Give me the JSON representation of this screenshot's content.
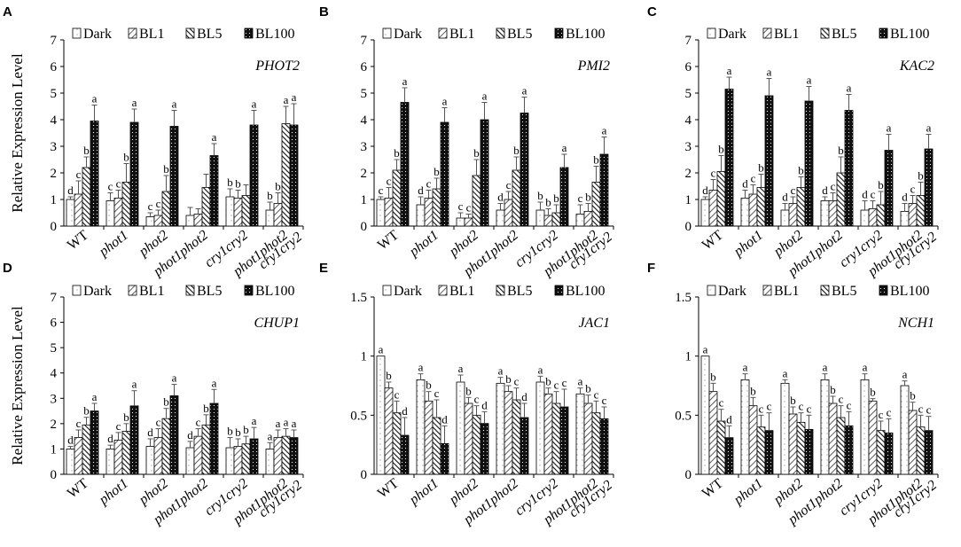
{
  "chart_data": [
    {
      "type": "bar",
      "panel": "A",
      "gene": "PHOT2",
      "ylabel": "Relative Expression Level",
      "ylim": [
        0,
        7
      ],
      "yticks": [
        "0",
        "1",
        "2",
        "3",
        "4",
        "5",
        "6",
        "7"
      ],
      "categories": [
        "WT",
        "phot1",
        "phot2",
        "phot1phot2",
        "cry1cry2",
        "phot1phot2 cry1cry2"
      ],
      "series": [
        {
          "name": "Dark",
          "values": [
            1.0,
            0.95,
            0.35,
            0.4,
            1.1,
            0.6
          ],
          "errors": [
            0.1,
            0.3,
            0.15,
            0.3,
            0.3,
            0.3
          ],
          "letters": [
            "d",
            "c",
            "c",
            "",
            "b",
            "b"
          ]
        },
        {
          "name": "BL1",
          "values": [
            1.2,
            1.05,
            0.4,
            0.45,
            1.05,
            0.85
          ],
          "errors": [
            0.5,
            0.3,
            0.2,
            0.2,
            0.3,
            0.4
          ],
          "letters": [
            "c",
            "c",
            "c",
            "",
            "b",
            "b"
          ]
        },
        {
          "name": "BL5",
          "values": [
            2.2,
            1.65,
            1.3,
            1.45,
            1.15,
            3.85
          ],
          "errors": [
            0.4,
            0.7,
            0.6,
            0.5,
            0.4,
            0.65
          ],
          "letters": [
            "b",
            "b",
            "b",
            "",
            "",
            "a"
          ]
        },
        {
          "name": "BL100",
          "values": [
            3.95,
            3.9,
            3.75,
            2.65,
            3.8,
            3.8
          ],
          "errors": [
            0.6,
            0.5,
            0.6,
            0.45,
            0.55,
            0.8
          ],
          "letters": [
            "a",
            "a",
            "a",
            "a",
            "a",
            "a"
          ]
        }
      ]
    },
    {
      "type": "bar",
      "panel": "B",
      "gene": "PMI2",
      "ylabel": "",
      "ylim": [
        0,
        7
      ],
      "yticks": [
        "0",
        "1",
        "2",
        "3",
        "4",
        "5",
        "6",
        "7"
      ],
      "categories": [
        "WT",
        "phot1",
        "phot2",
        "phot1phot2",
        "cry1cry2",
        "phot1phot2 cry1cry2"
      ],
      "series": [
        {
          "name": "Dark",
          "values": [
            1.0,
            0.8,
            0.3,
            0.6,
            0.6,
            0.45
          ],
          "errors": [
            0.1,
            0.3,
            0.2,
            0.25,
            0.3,
            0.35
          ],
          "letters": [
            "c",
            "d",
            "c",
            "d",
            "b",
            "c"
          ]
        },
        {
          "name": "BL1",
          "values": [
            1.05,
            1.05,
            0.3,
            1.0,
            0.4,
            0.55
          ],
          "errors": [
            0.4,
            0.3,
            0.15,
            0.3,
            0.25,
            0.3
          ],
          "letters": [
            "c",
            "c",
            "c",
            "c",
            "b",
            "b"
          ]
        },
        {
          "name": "BL5",
          "values": [
            2.1,
            1.4,
            1.9,
            2.1,
            0.5,
            1.65
          ],
          "errors": [
            0.4,
            0.4,
            0.6,
            0.5,
            0.3,
            0.6
          ],
          "letters": [
            "b",
            "b",
            "b",
            "b",
            "b",
            "b"
          ]
        },
        {
          "name": "BL100",
          "values": [
            4.65,
            3.9,
            4.0,
            4.25,
            2.2,
            2.7
          ],
          "errors": [
            0.55,
            0.55,
            0.65,
            0.6,
            0.5,
            0.65
          ],
          "letters": [
            "a",
            "a",
            "a",
            "a",
            "a",
            "a"
          ]
        }
      ]
    },
    {
      "type": "bar",
      "panel": "C",
      "gene": "KAC2",
      "ylabel": "",
      "ylim": [
        0,
        7
      ],
      "yticks": [
        "0",
        "1",
        "2",
        "3",
        "4",
        "5",
        "6",
        "7"
      ],
      "categories": [
        "WT",
        "phot1",
        "phot2",
        "phot1phot2",
        "cry1cry2",
        "phot1phot2 cry1cry2"
      ],
      "series": [
        {
          "name": "Dark",
          "values": [
            1.0,
            1.05,
            0.6,
            0.95,
            0.6,
            0.55
          ],
          "errors": [
            0.1,
            0.3,
            0.25,
            0.15,
            0.35,
            0.3
          ],
          "letters": [
            "d",
            "d",
            "d",
            "d",
            "d",
            "d"
          ]
        },
        {
          "name": "BL1",
          "values": [
            1.35,
            1.2,
            0.85,
            0.95,
            0.65,
            0.85
          ],
          "errors": [
            0.4,
            0.35,
            0.25,
            0.3,
            0.3,
            0.3
          ],
          "letters": [
            "c",
            "c",
            "c",
            "c",
            "c",
            "c"
          ]
        },
        {
          "name": "BL5",
          "values": [
            2.05,
            1.45,
            1.45,
            2.0,
            0.8,
            1.15
          ],
          "errors": [
            0.6,
            0.5,
            0.4,
            0.6,
            0.5,
            0.5
          ],
          "letters": [
            "b",
            "b",
            "b",
            "b",
            "b",
            "b"
          ]
        },
        {
          "name": "BL100",
          "values": [
            5.15,
            4.9,
            4.7,
            4.35,
            2.85,
            2.9
          ],
          "errors": [
            0.45,
            0.65,
            0.55,
            0.6,
            0.6,
            0.55
          ],
          "letters": [
            "a",
            "a",
            "a",
            "a",
            "a",
            "a"
          ]
        }
      ]
    },
    {
      "type": "bar",
      "panel": "D",
      "gene": "CHUP1",
      "ylabel": "Relative Expression Level",
      "ylim": [
        0,
        7
      ],
      "yticks": [
        "0",
        "1",
        "2",
        "3",
        "4",
        "5",
        "6",
        "7"
      ],
      "categories": [
        "WT",
        "phot1",
        "phot2",
        "phot1phot2",
        "cry1cry2",
        "phot1phot2 cry1cry2"
      ],
      "series": [
        {
          "name": "Dark",
          "values": [
            1.0,
            1.0,
            1.1,
            1.05,
            1.05,
            1.0
          ],
          "errors": [
            0.1,
            0.15,
            0.3,
            0.25,
            0.4,
            0.25
          ],
          "letters": [
            "d",
            "d",
            "d",
            "d",
            "b",
            "a"
          ]
        },
        {
          "name": "BL1",
          "values": [
            1.45,
            1.35,
            1.45,
            1.5,
            1.1,
            1.45
          ],
          "errors": [
            0.3,
            0.3,
            0.35,
            0.3,
            0.3,
            0.3
          ],
          "letters": [
            "c",
            "c",
            "c",
            "c",
            "b",
            "a"
          ]
        },
        {
          "name": "BL5",
          "values": [
            1.95,
            1.7,
            2.2,
            1.95,
            1.2,
            1.5
          ],
          "errors": [
            0.3,
            0.3,
            0.4,
            0.4,
            0.3,
            0.3
          ],
          "letters": [
            "b",
            "b",
            "b",
            "b",
            "b",
            "a"
          ]
        },
        {
          "name": "BL100",
          "values": [
            2.5,
            2.7,
            3.1,
            2.8,
            1.4,
            1.45
          ],
          "errors": [
            0.3,
            0.6,
            0.45,
            0.55,
            0.45,
            0.3
          ],
          "letters": [
            "a",
            "a",
            "a",
            "a",
            "a",
            "a"
          ]
        }
      ]
    },
    {
      "type": "bar",
      "panel": "E",
      "gene": "JAC1",
      "ylabel": "",
      "ylim": [
        0,
        1.5
      ],
      "yticks": [
        "0",
        "0.5",
        "1",
        "1.5"
      ],
      "categories": [
        "WT",
        "phot1",
        "phot2",
        "phot1phot2",
        "cry1cry2",
        "phot1phot2 cry1cry2"
      ],
      "series": [
        {
          "name": "Dark",
          "values": [
            1.0,
            0.8,
            0.78,
            0.77,
            0.78,
            0.68
          ],
          "errors": [
            0.0,
            0.05,
            0.06,
            0.05,
            0.05,
            0.05
          ],
          "letters": [
            "a",
            "a",
            "a",
            "a",
            "a",
            "a"
          ]
        },
        {
          "name": "BL1",
          "values": [
            0.73,
            0.62,
            0.6,
            0.7,
            0.68,
            0.6
          ],
          "errors": [
            0.05,
            0.08,
            0.05,
            0.05,
            0.05,
            0.07
          ],
          "letters": [
            "b",
            "b",
            "b",
            "b",
            "b",
            "b"
          ]
        },
        {
          "name": "BL5",
          "values": [
            0.52,
            0.48,
            0.5,
            0.63,
            0.6,
            0.52
          ],
          "errors": [
            0.1,
            0.15,
            0.08,
            0.1,
            0.1,
            0.1
          ],
          "letters": [
            "c",
            "c",
            "c",
            "c",
            "c",
            "c"
          ]
        },
        {
          "name": "BL100",
          "values": [
            0.33,
            0.26,
            0.43,
            0.48,
            0.57,
            0.47
          ],
          "errors": [
            0.15,
            0.15,
            0.1,
            0.12,
            0.15,
            0.1
          ],
          "letters": [
            "d",
            "d",
            "d",
            "d",
            "c",
            "c"
          ]
        }
      ]
    },
    {
      "type": "bar",
      "panel": "F",
      "gene": "NCH1",
      "ylabel": "",
      "ylim": [
        0,
        1.5
      ],
      "yticks": [
        "0",
        "0.5",
        "1",
        "1.5"
      ],
      "categories": [
        "WT",
        "phot1",
        "phot2",
        "phot1phot2",
        "cry1cry2",
        "phot1phot2 cry1cry2"
      ],
      "series": [
        {
          "name": "Dark",
          "values": [
            1.0,
            0.8,
            0.77,
            0.8,
            0.8,
            0.75
          ],
          "errors": [
            0.0,
            0.05,
            0.03,
            0.05,
            0.05,
            0.04
          ],
          "letters": [
            "a",
            "a",
            "a",
            "a",
            "a",
            "a"
          ]
        },
        {
          "name": "BL1",
          "values": [
            0.7,
            0.58,
            0.51,
            0.6,
            0.62,
            0.54
          ],
          "errors": [
            0.07,
            0.07,
            0.06,
            0.06,
            0.02,
            0.07
          ],
          "letters": [
            "b",
            "b",
            "b",
            "b",
            "b",
            "b"
          ]
        },
        {
          "name": "BL5",
          "values": [
            0.45,
            0.4,
            0.44,
            0.48,
            0.37,
            0.4
          ],
          "errors": [
            0.1,
            0.1,
            0.08,
            0.1,
            0.08,
            0.1
          ],
          "letters": [
            "c",
            "c",
            "c",
            "c",
            "c",
            "c"
          ]
        },
        {
          "name": "BL100",
          "values": [
            0.31,
            0.37,
            0.38,
            0.41,
            0.35,
            0.37
          ],
          "errors": [
            0.1,
            0.15,
            0.12,
            0.12,
            0.12,
            0.12
          ],
          "letters": [
            "d",
            "c",
            "c",
            "c",
            "c",
            "c"
          ]
        }
      ]
    }
  ],
  "legend": {
    "dark": "Dark",
    "bl1": "BL1",
    "bl5": "BL5",
    "bl100": "BL100"
  },
  "xaxis_labels": [
    [
      "WT"
    ],
    [
      "phot1"
    ],
    [
      "phot2"
    ],
    [
      "phot1phot2"
    ],
    [
      "cry1cry2"
    ],
    [
      "phot1phot2",
      "cry1cry2"
    ]
  ]
}
